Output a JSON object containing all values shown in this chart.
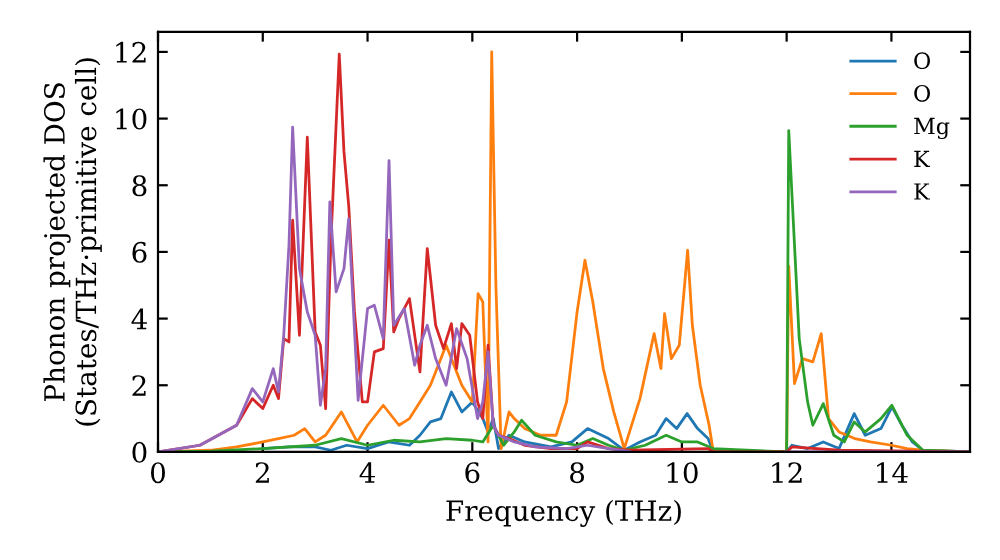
{
  "chart_data": {
    "type": "line",
    "xlabel": "Frequency (THz)",
    "ylabel": "Phonon projected DOS\n(States/THz·primitive cell)",
    "xlim": [
      0,
      15.5
    ],
    "ylim": [
      0,
      12.6
    ],
    "xticks": [
      0,
      2,
      4,
      6,
      8,
      10,
      12,
      14
    ],
    "yticks": [
      0,
      2,
      4,
      6,
      8,
      10,
      12
    ],
    "legend": "top right",
    "grid": false,
    "series": [
      {
        "name": "O",
        "color": "#1f77b4",
        "x": [
          2,
          2.5,
          3,
          3.3,
          3.6,
          4,
          4.4,
          4.8,
          5.0,
          5.2,
          5.4,
          5.6,
          5.8,
          6.0,
          6.2,
          6.3,
          6.4,
          6.5,
          6.7,
          7.0,
          7.5,
          7.9,
          8.2,
          8.6,
          8.9,
          9.2,
          9.5,
          9.7,
          9.9,
          10.1,
          10.3,
          10.5,
          10.6,
          12,
          12.1,
          12.4,
          12.7,
          13,
          13.29,
          13.5,
          13.8,
          14.01,
          14.2,
          14.4,
          14.6,
          15.5
        ],
        "values": [
          0.1,
          0.15,
          0.15,
          0.05,
          0.2,
          0.1,
          0.3,
          0.2,
          0.5,
          0.9,
          1.0,
          1.8,
          1.2,
          1.5,
          1.0,
          0.6,
          1.0,
          0.1,
          0.5,
          0.3,
          0.15,
          0.3,
          0.7,
          0.4,
          0.05,
          0.3,
          0.5,
          1.0,
          0.7,
          1.15,
          0.7,
          0.4,
          0,
          0,
          0.2,
          0.1,
          0.3,
          0.1,
          1.15,
          0.5,
          0.7,
          1.35,
          0.8,
          0.3,
          0.05,
          0
        ]
      },
      {
        "name": "O",
        "color": "#ff7f0e",
        "x": [
          0,
          1,
          1.5,
          2,
          2.3,
          2.6,
          2.8,
          3.0,
          3.2,
          3.5,
          3.8,
          4.0,
          4.3,
          4.6,
          4.8,
          5.0,
          5.2,
          5.5,
          5.8,
          6.0,
          6.11,
          6.2,
          6.3,
          6.37,
          6.45,
          6.55,
          6.7,
          6.8,
          7.0,
          7.3,
          7.6,
          7.8,
          8.0,
          8.15,
          8.3,
          8.5,
          8.7,
          8.9,
          9.2,
          9.47,
          9.6,
          9.67,
          9.8,
          9.95,
          10.11,
          10.2,
          10.35,
          10.52,
          10.6,
          12,
          12.04,
          12.15,
          12.3,
          12.5,
          12.66,
          12.8,
          13.0,
          13.3,
          13.6,
          14.0,
          14.3,
          14.6,
          15.5
        ],
        "values": [
          0,
          0.05,
          0.15,
          0.3,
          0.4,
          0.5,
          0.7,
          0.3,
          0.5,
          1.2,
          0.3,
          0.8,
          1.4,
          0.8,
          1.0,
          1.5,
          2.0,
          3.2,
          2.0,
          1.5,
          4.75,
          4.5,
          0.3,
          12.0,
          5.0,
          0.1,
          1.2,
          1.0,
          0.7,
          0.5,
          0.5,
          1.5,
          4.2,
          5.75,
          4.5,
          2.5,
          1.2,
          0.1,
          1.6,
          3.55,
          2.5,
          4.15,
          2.8,
          3.2,
          6.05,
          3.8,
          2.0,
          0.8,
          0,
          0,
          5.57,
          2.05,
          2.8,
          2.7,
          3.55,
          1.0,
          0.6,
          0.4,
          0.3,
          0.2,
          0.1,
          0.05,
          0
        ]
      },
      {
        "name": "Mg",
        "color": "#2ca02c",
        "x": [
          0,
          1,
          2,
          3,
          3.5,
          4,
          4.5,
          5,
          5.5,
          6,
          6.2,
          6.4,
          6.6,
          6.8,
          6.94,
          7.2,
          7.6,
          8,
          8.3,
          8.6,
          8.9,
          9.3,
          9.7,
          10,
          10.3,
          10.6,
          12,
          12.04,
          12.24,
          12.4,
          12.5,
          12.7,
          12.9,
          13.1,
          13.29,
          13.5,
          13.8,
          14.01,
          14.3,
          14.6,
          15.5
        ],
        "values": [
          0,
          0.02,
          0.1,
          0.2,
          0.4,
          0.2,
          0.35,
          0.3,
          0.4,
          0.35,
          0.3,
          0.8,
          0.2,
          0.6,
          0.95,
          0.5,
          0.3,
          0.2,
          0.4,
          0.2,
          0.05,
          0.2,
          0.5,
          0.3,
          0.3,
          0.1,
          0,
          9.64,
          3.4,
          1.5,
          0.8,
          1.45,
          0.5,
          0.3,
          0.9,
          0.6,
          1.0,
          1.4,
          0.5,
          0.05,
          0
        ]
      },
      {
        "name": "K",
        "color": "#d62728",
        "x": [
          0,
          0.8,
          1.5,
          1.8,
          2.0,
          2.2,
          2.3,
          2.4,
          2.5,
          2.57,
          2.7,
          2.85,
          3.0,
          3.1,
          3.2,
          3.3,
          3.46,
          3.55,
          3.64,
          3.75,
          3.9,
          4.0,
          4.13,
          4.3,
          4.41,
          4.5,
          4.6,
          4.8,
          5.0,
          5.14,
          5.3,
          5.45,
          5.6,
          5.7,
          5.8,
          5.95,
          6.1,
          6.2,
          6.3,
          6.4,
          6.5,
          6.7,
          7.0,
          7.5,
          8.0,
          8.2,
          8.6,
          9.0,
          10.5,
          10.6,
          12,
          12.1,
          13,
          15.5
        ],
        "values": [
          0,
          0.2,
          0.8,
          1.6,
          1.3,
          2.0,
          1.6,
          3.4,
          3.3,
          6.95,
          3.5,
          9.44,
          3.6,
          3.2,
          1.3,
          6.3,
          11.93,
          9.0,
          7.4,
          4.2,
          1.5,
          1.5,
          3.0,
          3.1,
          6.35,
          3.6,
          4.0,
          4.6,
          2.4,
          6.1,
          3.8,
          3.1,
          3.85,
          2.5,
          3.85,
          3.5,
          1.5,
          1.0,
          3.2,
          0.8,
          0.5,
          0.4,
          0.2,
          0.1,
          0.1,
          0.3,
          0.1,
          0.05,
          0.1,
          0,
          0,
          0.15,
          0.05,
          0
        ]
      },
      {
        "name": "K",
        "color": "#9467bd",
        "x": [
          0,
          0.8,
          1.5,
          1.8,
          2.0,
          2.2,
          2.3,
          2.4,
          2.5,
          2.57,
          2.7,
          2.85,
          3.0,
          3.1,
          3.2,
          3.28,
          3.4,
          3.55,
          3.64,
          3.82,
          4.0,
          4.13,
          4.3,
          4.41,
          4.5,
          4.7,
          4.9,
          5.0,
          5.14,
          5.3,
          5.5,
          5.7,
          5.9,
          6.1,
          6.2,
          6.3,
          6.4,
          6.5,
          6.8,
          7.2,
          7.8,
          8.2,
          8.6,
          9,
          10.6,
          12,
          15.5
        ],
        "values": [
          0,
          0.2,
          0.8,
          1.9,
          1.5,
          2.5,
          1.8,
          3.5,
          6.2,
          9.74,
          5.5,
          4.2,
          3.5,
          1.4,
          2.5,
          7.5,
          4.8,
          5.5,
          7.0,
          1.55,
          4.3,
          4.4,
          3.4,
          8.74,
          3.8,
          4.3,
          2.6,
          3.2,
          3.8,
          2.8,
          2.0,
          3.7,
          2.8,
          1.0,
          1.5,
          3.0,
          0.8,
          0.5,
          0.3,
          0.15,
          0.1,
          0.2,
          0.1,
          0.02,
          null,
          0,
          0
        ]
      }
    ]
  }
}
